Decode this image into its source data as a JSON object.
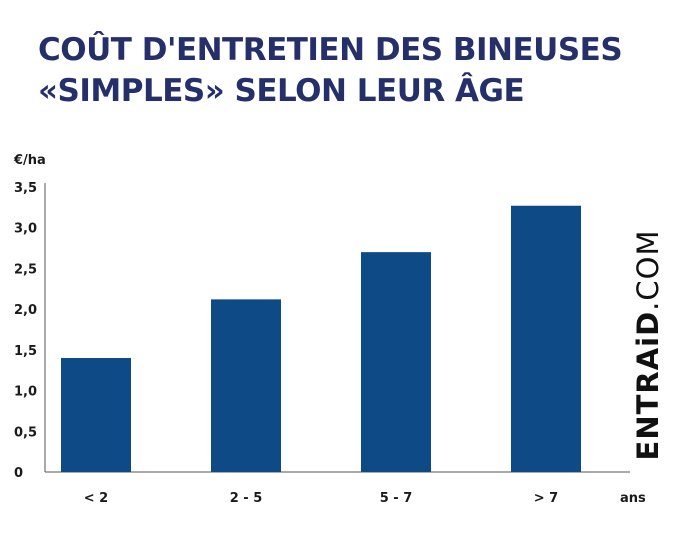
{
  "title": {
    "line1": "COÛT D'ENTRETIEN DES BINEUSES",
    "line2": "«SIMPLES» SELON LEUR ÂGE"
  },
  "watermark": {
    "brand": "ENTRAiD",
    "tld": ".COM"
  },
  "colors": {
    "title": "#25306b",
    "bar": "#0d4a86",
    "axis": "#555555",
    "text": "#1a1a1a"
  },
  "chart_data": {
    "type": "bar",
    "title": "COÛT D'ENTRETIEN DES BINEUSES «SIMPLES» SELON LEUR ÂGE",
    "ylabel": "€/ha",
    "xlabel": "ans",
    "categories": [
      "< 2",
      "2 - 5",
      "5 - 7",
      "> 7"
    ],
    "values": [
      1.4,
      2.12,
      2.7,
      3.27
    ],
    "ylim": [
      0,
      3.5
    ],
    "yticks": [
      "0",
      "0,5",
      "1,0",
      "1,5",
      "2,0",
      "2,5",
      "3,0",
      "3,5"
    ],
    "grid": false
  }
}
